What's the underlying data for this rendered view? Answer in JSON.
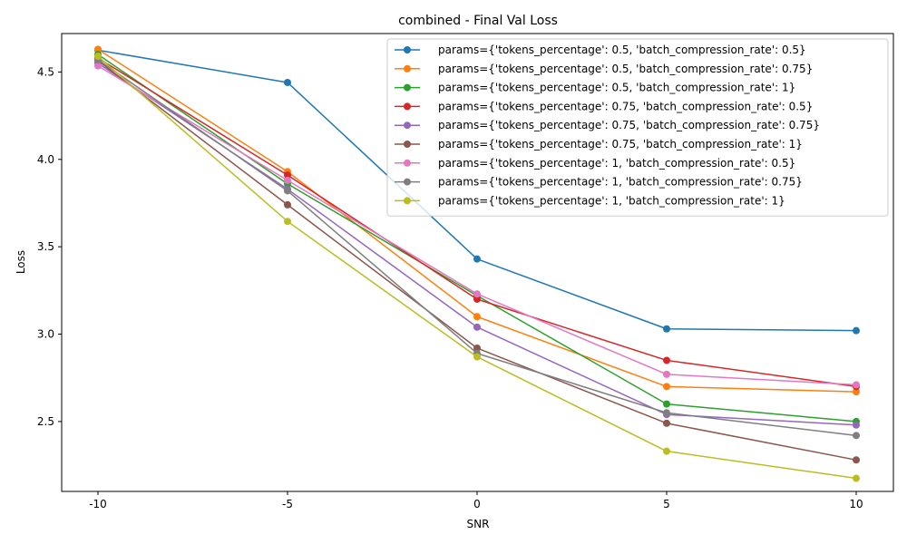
{
  "chart_data": {
    "type": "line",
    "title": "combined - Final Val Loss",
    "xlabel": "SNR",
    "ylabel": "Loss",
    "categories": [
      "-10",
      "-5",
      "0",
      "5",
      "10"
    ],
    "yticks": [
      "2.5",
      "3.0",
      "3.5",
      "4.0",
      "4.5"
    ],
    "ylim": [
      2.1,
      4.72
    ],
    "grid": false,
    "legend_position": "top-right",
    "series": [
      {
        "name": "params={'tokens_percentage': 0.5, 'batch_compression_rate': 0.5}",
        "color": "#1f77b4",
        "values": [
          4.625,
          4.44,
          3.43,
          3.03,
          3.02
        ]
      },
      {
        "name": "params={'tokens_percentage': 0.5, 'batch_compression_rate': 0.75}",
        "color": "#ff7f0e",
        "values": [
          4.63,
          3.93,
          3.1,
          2.7,
          2.67
        ]
      },
      {
        "name": "params={'tokens_percentage': 0.5, 'batch_compression_rate': 1}",
        "color": "#2ca02c",
        "values": [
          4.6,
          3.86,
          3.22,
          2.6,
          2.5
        ]
      },
      {
        "name": "params={'tokens_percentage': 0.75, 'batch_compression_rate': 0.5}",
        "color": "#d62728",
        "values": [
          4.58,
          3.91,
          3.2,
          2.85,
          2.7
        ]
      },
      {
        "name": "params={'tokens_percentage': 0.75, 'batch_compression_rate': 0.75}",
        "color": "#9467bd",
        "values": [
          4.55,
          3.83,
          3.04,
          2.54,
          2.48
        ]
      },
      {
        "name": "params={'tokens_percentage': 0.75, 'batch_compression_rate': 1}",
        "color": "#8c564b",
        "values": [
          4.565,
          3.74,
          2.92,
          2.49,
          2.28
        ]
      },
      {
        "name": "params={'tokens_percentage': 1, 'batch_compression_rate': 0.5}",
        "color": "#e377c2",
        "values": [
          4.535,
          3.88,
          3.23,
          2.77,
          2.71
        ]
      },
      {
        "name": "params={'tokens_percentage': 1, 'batch_compression_rate': 0.75}",
        "color": "#7f7f7f",
        "values": [
          4.57,
          3.82,
          2.89,
          2.55,
          2.42
        ]
      },
      {
        "name": "params={'tokens_percentage': 1, 'batch_compression_rate': 1}",
        "color": "#bcbd22",
        "values": [
          4.59,
          3.645,
          2.87,
          2.33,
          2.175
        ]
      }
    ]
  }
}
